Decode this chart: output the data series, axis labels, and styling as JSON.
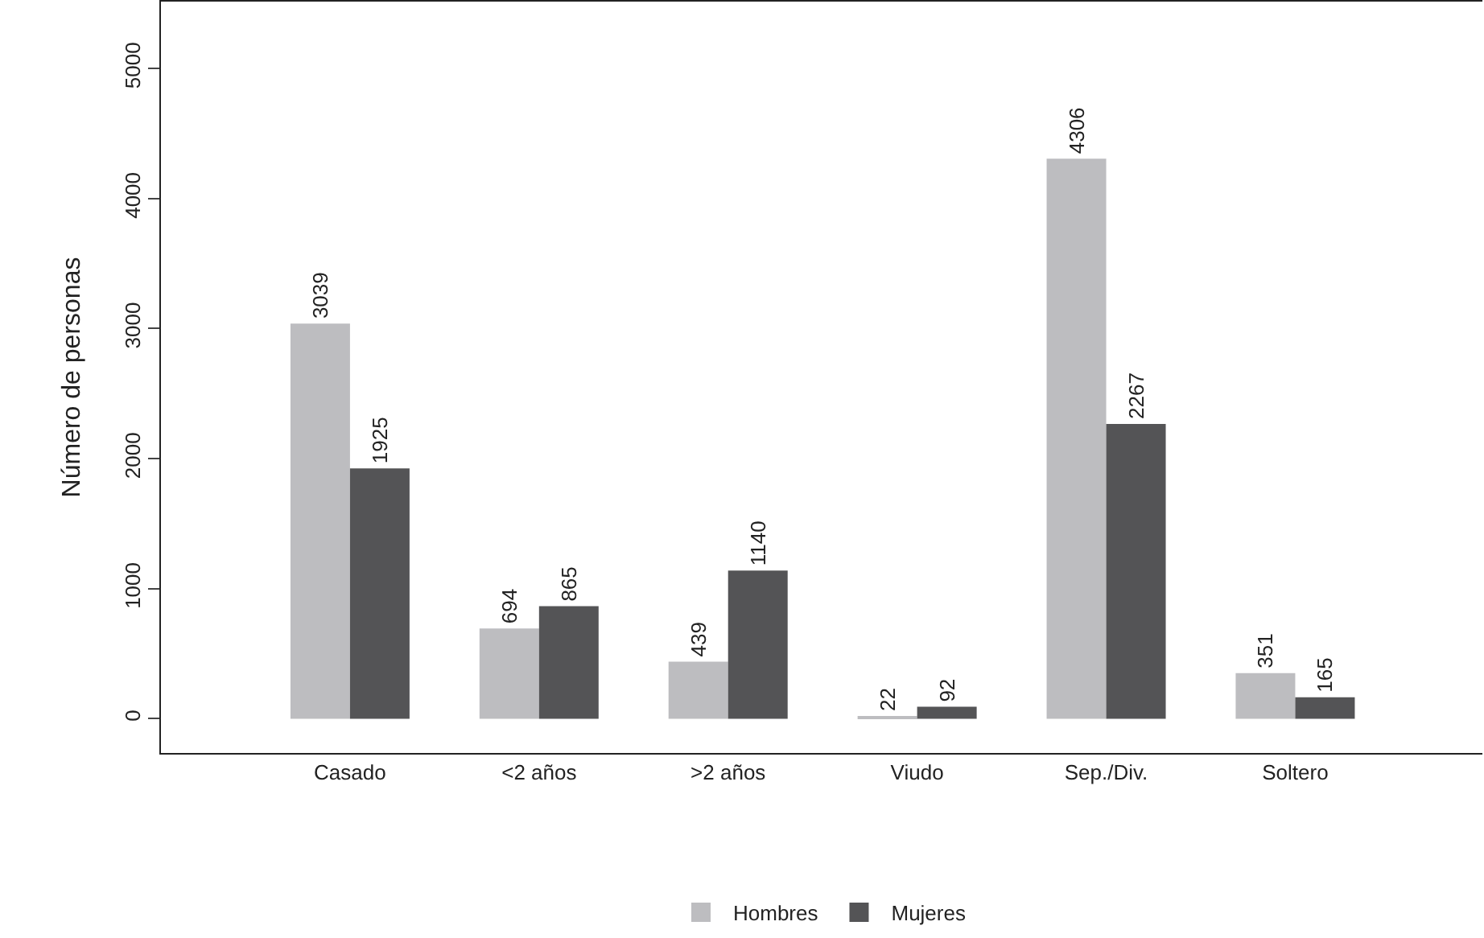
{
  "chart_data": {
    "type": "bar",
    "ylabel": "Número de personas",
    "categories": [
      "Casado",
      "<2 años",
      ">2 años",
      "Viudo",
      "Sep./Div.",
      "Soltero"
    ],
    "series": [
      {
        "name": "Hombres",
        "color": "#bdbdc0",
        "values": [
          3039,
          694,
          439,
          22,
          4306,
          351
        ]
      },
      {
        "name": "Mujeres",
        "color": "#545456",
        "values": [
          1925,
          865,
          1140,
          92,
          2267,
          165
        ]
      }
    ],
    "ylim": [
      -263,
      5514
    ],
    "yticks": [
      0,
      1000,
      2000,
      3000,
      4000,
      5000
    ],
    "grid": false,
    "legend": "bottom",
    "data_labels": true
  }
}
